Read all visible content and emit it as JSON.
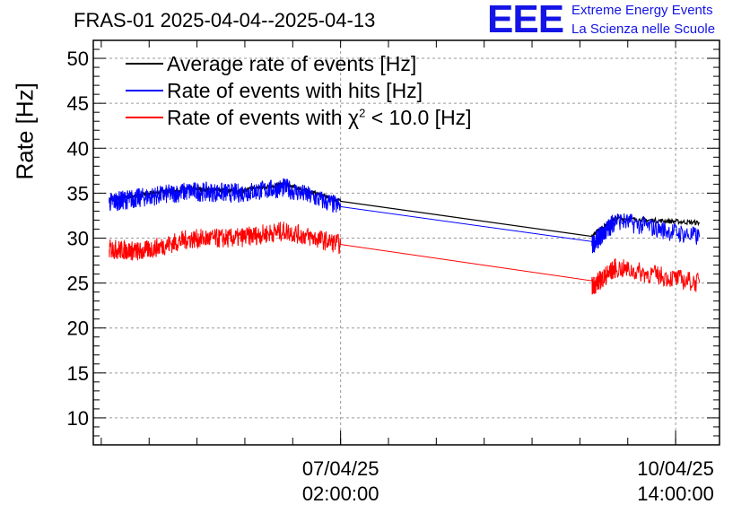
{
  "title": "FRAS-01 2025-04-04--2025-04-13",
  "logo": {
    "mark": "EEE",
    "line1": "Extreme Energy Events",
    "line2": "La Scienza nelle Scuole"
  },
  "colors": {
    "average": "#000000",
    "hits": "#0000ff",
    "chi2": "#ff0000",
    "logo": "#1414e6"
  },
  "legend": {
    "average": "Average rate of events [Hz]",
    "hits": "Rate of events with hits [Hz]",
    "chi2_prefix": "Rate of events with χ",
    "chi2_sup": "2",
    "chi2_suffix": " < 10.0 [Hz]"
  },
  "chart_data": {
    "type": "line",
    "ylabel": "Rate [Hz]",
    "ylim": [
      7,
      52
    ],
    "yticks": [
      10,
      15,
      20,
      25,
      30,
      35,
      40,
      45,
      50
    ],
    "xlim": [
      "2025-04-04 12:00",
      "2025-04-11 01:00"
    ],
    "xticks": [
      {
        "t": "2025-04-07 02:00",
        "line1": "07/04/25",
        "line2": "02:00:00"
      },
      {
        "t": "2025-04-10 14:00",
        "line1": "10/04/25",
        "line2": "14:00:00"
      }
    ],
    "grid": true,
    "legend_position": "top-left",
    "series": [
      {
        "name": "Average rate of events [Hz]",
        "key": "average",
        "x": [
          "2025-04-04 16:00",
          "2025-04-05 00:00",
          "2025-04-05 12:00",
          "2025-04-06 00:00",
          "2025-04-06 12:00",
          "2025-04-07 02:00",
          "2025-04-09 17:00",
          "2025-04-09 23:00",
          "2025-04-10 20:00"
        ],
        "y": [
          34.3,
          34.8,
          35.5,
          35.2,
          36.0,
          34.1,
          30.3,
          32.2,
          31.7
        ]
      },
      {
        "name": "Rate of events with hits [Hz]",
        "key": "hits",
        "x": [
          "2025-04-04 16:00",
          "2025-04-05 00:00",
          "2025-04-05 12:00",
          "2025-04-06 00:00",
          "2025-04-06 12:00",
          "2025-04-07 02:00",
          "2025-04-09 17:00",
          "2025-04-09 23:00",
          "2025-04-10 20:00"
        ],
        "y": [
          34.0,
          34.5,
          35.2,
          35.0,
          35.6,
          33.5,
          29.2,
          32.0,
          30.1
        ]
      },
      {
        "name": "Rate of events with χ2 < 10.0 [Hz]",
        "key": "chi2",
        "x": [
          "2025-04-04 16:00",
          "2025-04-05 00:00",
          "2025-04-05 12:00",
          "2025-04-06 00:00",
          "2025-04-06 12:00",
          "2025-04-07 02:00",
          "2025-04-09 17:00",
          "2025-04-09 23:00",
          "2025-04-10 20:00"
        ],
        "y": [
          28.8,
          28.5,
          29.9,
          30.0,
          30.8,
          29.3,
          24.6,
          26.7,
          25.0
        ]
      }
    ]
  }
}
